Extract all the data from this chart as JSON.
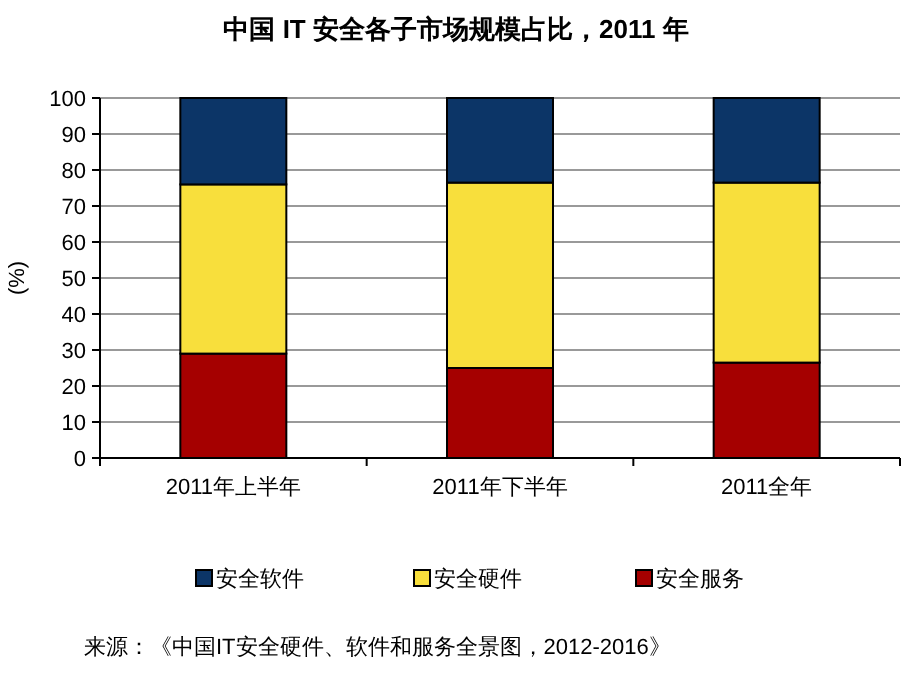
{
  "chart_data": {
    "type": "bar",
    "title": "中国 IT 安全各子市场规模占比，2011 年",
    "ylabel": "(%)",
    "stacked": true,
    "categories": [
      "2011年上半年",
      "2011年下半年",
      "2011全年"
    ],
    "series": [
      {
        "name": "安全服务",
        "color": "#a50000",
        "values": [
          29,
          25,
          26.5
        ]
      },
      {
        "name": "安全硬件",
        "color": "#f8df3c",
        "values": [
          47,
          51.5,
          50
        ]
      },
      {
        "name": "安全软件",
        "color": "#0c3567",
        "values": [
          24,
          23.5,
          23.5
        ]
      }
    ],
    "ylim": [
      0,
      100
    ],
    "yticks": [
      0,
      10,
      20,
      30,
      40,
      50,
      60,
      70,
      80,
      90,
      100
    ],
    "grid": "y",
    "legend": "bottom",
    "annotations": [
      "来源：《中国IT安全硬件、软件和服务全景图，2012-2016》"
    ]
  }
}
